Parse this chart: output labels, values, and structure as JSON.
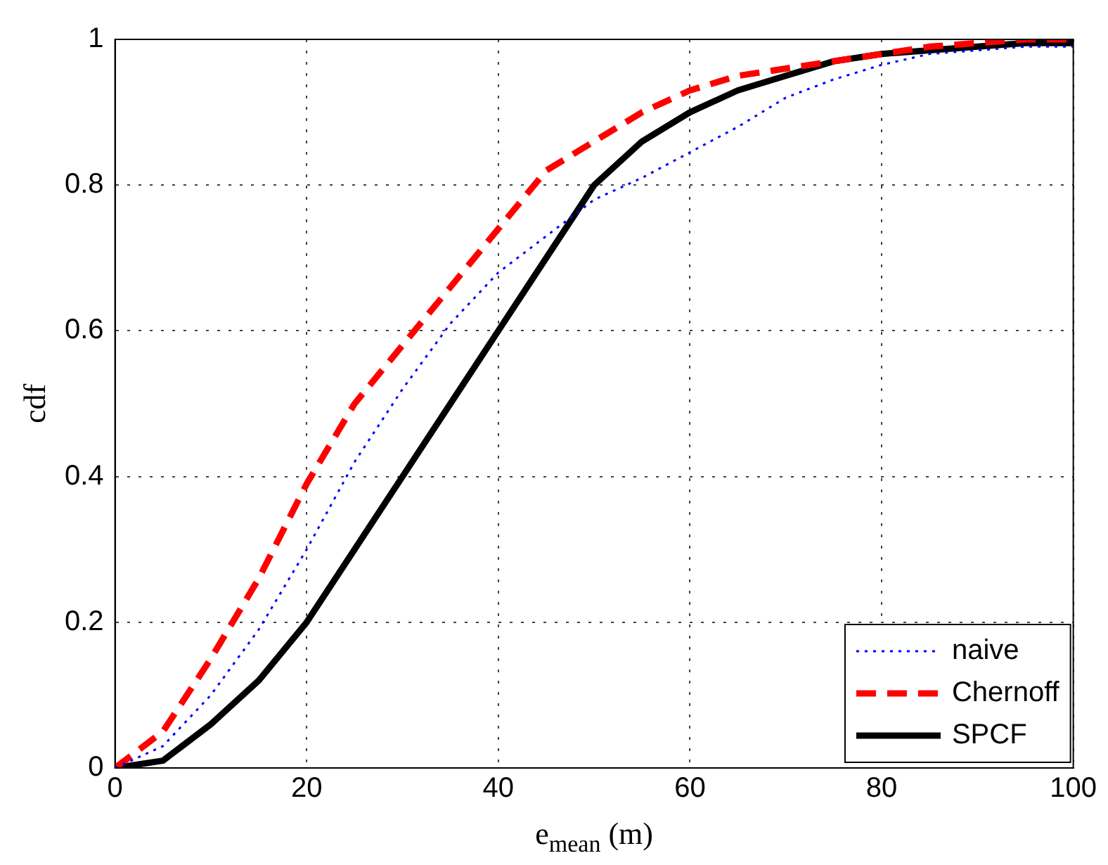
{
  "chart_data": {
    "type": "line",
    "xlabel": "e$_{mean}$ (m)",
    "ylabel": "cdf",
    "x": [
      0,
      5,
      10,
      15,
      20,
      25,
      30,
      35,
      40,
      45,
      50,
      55,
      60,
      65,
      70,
      75,
      80,
      85,
      90,
      95,
      100
    ],
    "series": [
      {
        "name": "naive",
        "color": "#0000ff",
        "line_style": "dotted",
        "values": [
          0,
          0.03,
          0.1,
          0.19,
          0.3,
          0.42,
          0.52,
          0.61,
          0.68,
          0.73,
          0.78,
          0.81,
          0.845,
          0.88,
          0.92,
          0.945,
          0.965,
          0.98,
          0.985,
          0.99,
          0.99
        ]
      },
      {
        "name": "Chernoff",
        "color": "#ff0000",
        "line_style": "dashed",
        "values": [
          0,
          0.05,
          0.15,
          0.26,
          0.39,
          0.5,
          0.58,
          0.66,
          0.74,
          0.82,
          0.86,
          0.9,
          0.93,
          0.95,
          0.96,
          0.97,
          0.98,
          0.99,
          0.995,
          1,
          1
        ]
      },
      {
        "name": "SPCF",
        "color": "#000000",
        "line_style": "solid",
        "values": [
          0,
          0.01,
          0.06,
          0.12,
          0.2,
          0.3,
          0.4,
          0.5,
          0.6,
          0.7,
          0.8,
          0.86,
          0.9,
          0.93,
          0.95,
          0.97,
          0.98,
          0.985,
          0.99,
          0.995,
          0.995
        ]
      }
    ],
    "xlim": [
      0,
      100
    ],
    "xticks": [
      0,
      20,
      40,
      60,
      80,
      100
    ],
    "ylim": [
      0,
      1
    ],
    "yticks": [
      0,
      0.2,
      0.4,
      0.6,
      0.8,
      1
    ],
    "grid": true,
    "legend": "bottom right",
    "marker": "none"
  }
}
